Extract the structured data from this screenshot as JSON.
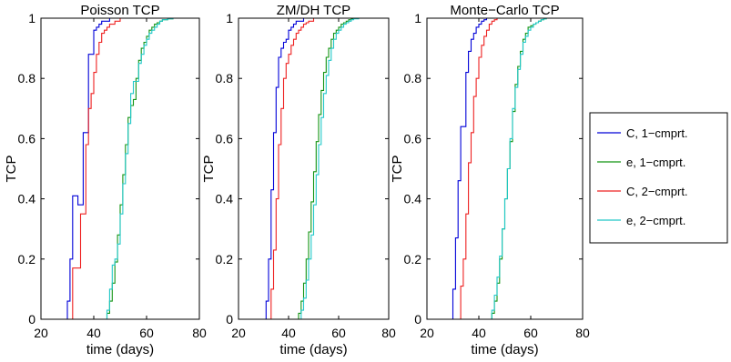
{
  "chart_data": [
    {
      "type": "line",
      "title": "Poisson TCP",
      "xlabel": "time (days)",
      "ylabel": "TCP",
      "xlim": [
        20,
        80
      ],
      "ylim": [
        0,
        1
      ],
      "xticks": [
        "20",
        "40",
        "60",
        "80"
      ],
      "yticks": [
        "0",
        "0.2",
        "0.4",
        "0.6",
        "0.8",
        "1"
      ],
      "grid": false,
      "series": [
        {
          "name": "C, 1−cmprt.",
          "x": [
            20,
            29,
            30,
            31,
            32,
            33,
            34,
            35,
            36,
            37,
            38,
            39,
            40,
            41,
            42,
            43,
            44,
            46,
            48,
            80
          ],
          "y": [
            0,
            0,
            0.06,
            0.2,
            0.41,
            0.41,
            0.38,
            0.38,
            0.62,
            0.62,
            0.88,
            0.88,
            0.96,
            0.97,
            0.98,
            0.99,
            0.99,
            1,
            1,
            1
          ]
        },
        {
          "name": "e, 1−cmprt.",
          "x": [
            20,
            44,
            45,
            46,
            47,
            48,
            49,
            50,
            51,
            52,
            53,
            54,
            55,
            56,
            57,
            58,
            59,
            60,
            61,
            62,
            63,
            64,
            65,
            66,
            68,
            70,
            72,
            74,
            80
          ],
          "y": [
            0,
            0,
            0.02,
            0.06,
            0.12,
            0.19,
            0.28,
            0.38,
            0.48,
            0.58,
            0.67,
            0.71,
            0.73,
            0.8,
            0.86,
            0.9,
            0.92,
            0.94,
            0.96,
            0.97,
            0.98,
            0.985,
            0.99,
            0.995,
            0.998,
            1,
            1,
            1,
            1
          ]
        },
        {
          "name": "C, 2−cmprt.",
          "x": [
            20,
            31,
            32,
            33,
            34,
            35,
            36,
            37,
            38,
            39,
            40,
            41,
            42,
            43,
            44,
            45,
            46,
            48,
            50,
            80
          ],
          "y": [
            0,
            0,
            0.17,
            0.17,
            0.17,
            0.35,
            0.35,
            0.58,
            0.7,
            0.75,
            0.82,
            0.88,
            0.92,
            0.95,
            0.96,
            0.97,
            0.98,
            0.99,
            1,
            1
          ]
        },
        {
          "name": "e, 2−cmprt.",
          "x": [
            20,
            44,
            45,
            46,
            47,
            48,
            49,
            50,
            51,
            52,
            53,
            54,
            55,
            56,
            57,
            58,
            59,
            60,
            61,
            62,
            63,
            64,
            65,
            66,
            68,
            70,
            72,
            74,
            80
          ],
          "y": [
            0,
            0,
            0.03,
            0.1,
            0.18,
            0.2,
            0.25,
            0.35,
            0.45,
            0.55,
            0.65,
            0.75,
            0.79,
            0.79,
            0.85,
            0.88,
            0.91,
            0.93,
            0.95,
            0.96,
            0.97,
            0.98,
            0.99,
            0.995,
            0.998,
            1,
            1,
            1,
            1
          ]
        }
      ]
    },
    {
      "type": "line",
      "title": "ZM/DH TCP",
      "xlabel": "time (days)",
      "ylabel": "TCP",
      "xlim": [
        20,
        80
      ],
      "ylim": [
        0,
        1
      ],
      "xticks": [
        "20",
        "40",
        "60",
        "80"
      ],
      "yticks": [
        "0",
        "0.2",
        "0.4",
        "0.6",
        "0.8",
        "1"
      ],
      "grid": false,
      "series": [
        {
          "name": "C, 1−cmprt.",
          "x": [
            20,
            30,
            31,
            32,
            33,
            34,
            35,
            36,
            37,
            38,
            39,
            40,
            41,
            42,
            43,
            44,
            46,
            48,
            80
          ],
          "y": [
            0,
            0,
            0.06,
            0.2,
            0.43,
            0.62,
            0.77,
            0.87,
            0.9,
            0.92,
            0.93,
            0.96,
            0.97,
            0.98,
            0.99,
            0.99,
            1,
            1,
            1
          ]
        },
        {
          "name": "e, 1−cmprt.",
          "x": [
            20,
            43,
            44,
            45,
            46,
            47,
            48,
            49,
            50,
            51,
            52,
            53,
            54,
            55,
            56,
            57,
            58,
            59,
            60,
            61,
            62,
            63,
            64,
            65,
            66,
            68,
            70,
            72,
            80
          ],
          "y": [
            0,
            0,
            0.02,
            0.06,
            0.12,
            0.2,
            0.29,
            0.39,
            0.49,
            0.59,
            0.68,
            0.76,
            0.82,
            0.87,
            0.9,
            0.93,
            0.95,
            0.96,
            0.97,
            0.98,
            0.985,
            0.99,
            0.995,
            0.998,
            1,
            1,
            1,
            1,
            1
          ]
        },
        {
          "name": "C, 2−cmprt.",
          "x": [
            20,
            32,
            33,
            34,
            35,
            36,
            37,
            38,
            39,
            40,
            41,
            42,
            43,
            44,
            45,
            46,
            47,
            48,
            50,
            52,
            80
          ],
          "y": [
            0,
            0,
            0.1,
            0.23,
            0.4,
            0.58,
            0.7,
            0.8,
            0.85,
            0.88,
            0.91,
            0.93,
            0.95,
            0.96,
            0.97,
            0.98,
            0.985,
            0.99,
            1,
            1,
            1
          ]
        },
        {
          "name": "e, 2−cmprt.",
          "x": [
            20,
            44,
            45,
            46,
            47,
            48,
            49,
            50,
            51,
            52,
            53,
            54,
            55,
            56,
            57,
            58,
            59,
            60,
            61,
            62,
            63,
            64,
            65,
            66,
            68,
            70,
            72,
            80
          ],
          "y": [
            0,
            0,
            0.03,
            0.07,
            0.13,
            0.2,
            0.28,
            0.38,
            0.48,
            0.58,
            0.67,
            0.75,
            0.81,
            0.86,
            0.9,
            0.93,
            0.95,
            0.96,
            0.97,
            0.98,
            0.985,
            0.99,
            0.995,
            0.998,
            1,
            1,
            1,
            1
          ]
        }
      ]
    },
    {
      "type": "line",
      "title": "Monte−Carlo TCP",
      "xlabel": "time (days)",
      "ylabel": "TCP",
      "xlim": [
        20,
        80
      ],
      "ylim": [
        0,
        1
      ],
      "xticks": [
        "20",
        "40",
        "60",
        "80"
      ],
      "yticks": [
        "0",
        "0.2",
        "0.4",
        "0.6",
        "0.8",
        "1"
      ],
      "grid": false,
      "series": [
        {
          "name": "C, 1−cmprt.",
          "x": [
            20,
            29,
            30,
            31,
            32,
            33,
            34,
            35,
            36,
            37,
            38,
            39,
            40,
            41,
            42,
            43,
            44,
            46,
            48,
            80
          ],
          "y": [
            0,
            0,
            0.1,
            0.27,
            0.46,
            0.64,
            0.64,
            0.82,
            0.89,
            0.93,
            0.95,
            0.97,
            0.98,
            0.99,
            0.995,
            1,
            1,
            1,
            1,
            1
          ]
        },
        {
          "name": "e, 1−cmprt.",
          "x": [
            20,
            44,
            45,
            46,
            47,
            48,
            49,
            50,
            51,
            52,
            53,
            54,
            55,
            56,
            57,
            58,
            59,
            60,
            61,
            62,
            63,
            64,
            65,
            66,
            68,
            70,
            72,
            80
          ],
          "y": [
            0,
            0,
            0.02,
            0.06,
            0.12,
            0.2,
            0.3,
            0.4,
            0.5,
            0.59,
            0.69,
            0.78,
            0.84,
            0.89,
            0.93,
            0.95,
            0.97,
            0.975,
            0.98,
            0.985,
            0.99,
            0.995,
            0.998,
            1,
            1,
            1,
            1,
            1
          ]
        },
        {
          "name": "C, 2−cmprt.",
          "x": [
            20,
            32,
            33,
            34,
            35,
            36,
            37,
            38,
            39,
            40,
            41,
            42,
            43,
            44,
            45,
            46,
            47,
            48,
            50,
            80
          ],
          "y": [
            0,
            0,
            0.11,
            0.2,
            0.35,
            0.52,
            0.62,
            0.74,
            0.8,
            0.87,
            0.91,
            0.94,
            0.96,
            0.98,
            0.99,
            0.995,
            1,
            1,
            1,
            1
          ]
        },
        {
          "name": "e, 2−cmprt.",
          "x": [
            20,
            44,
            45,
            46,
            47,
            48,
            49,
            50,
            51,
            52,
            53,
            54,
            55,
            56,
            57,
            58,
            59,
            60,
            61,
            62,
            63,
            64,
            65,
            66,
            68,
            70,
            72,
            80
          ],
          "y": [
            0,
            0,
            0.03,
            0.08,
            0.14,
            0.21,
            0.3,
            0.4,
            0.5,
            0.6,
            0.7,
            0.77,
            0.83,
            0.88,
            0.92,
            0.94,
            0.96,
            0.97,
            0.98,
            0.985,
            0.99,
            0.995,
            0.998,
            1,
            1,
            1,
            1,
            1
          ]
        }
      ]
    }
  ],
  "colors": {
    "C, 1−cmprt.": "#0000d8",
    "e, 1−cmprt.": "#129412",
    "C, 2−cmprt.": "#ee2020",
    "e, 2−cmprt.": "#20c8c8"
  },
  "legend": {
    "position": "right",
    "entries": [
      "C, 1−cmprt.",
      "e, 1−cmprt.",
      "C, 2−cmprt.",
      "e, 2−cmprt."
    ]
  }
}
